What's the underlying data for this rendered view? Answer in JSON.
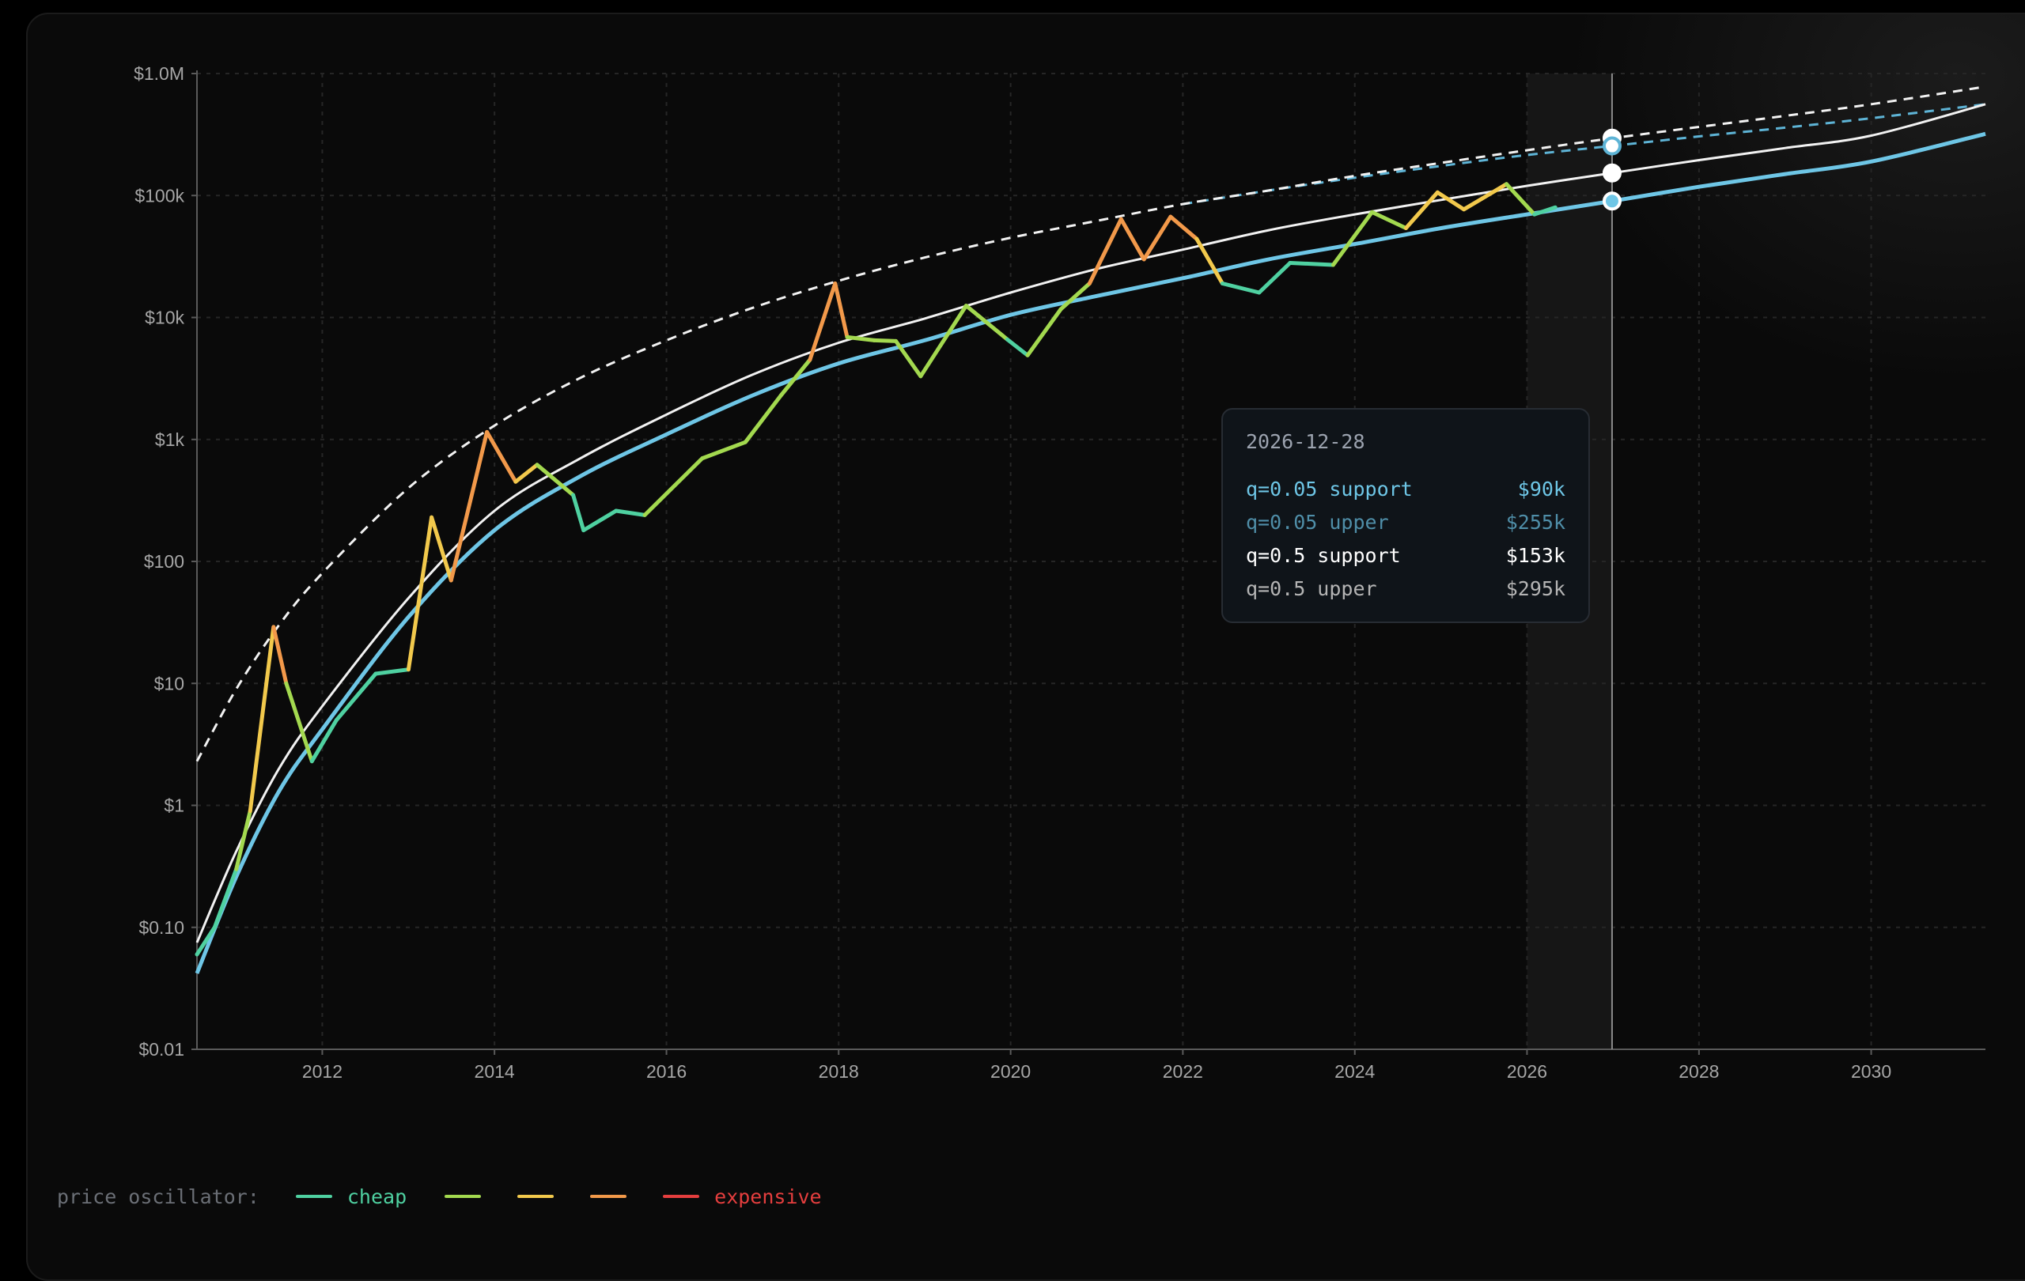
{
  "chart_data": {
    "type": "line",
    "y_scale": "log",
    "ylim": [
      0.01,
      1000000
    ],
    "xlim": [
      "2010-07-18",
      "2031-05-01"
    ],
    "grid": true,
    "x_ticks": [
      "2012",
      "2014",
      "2016",
      "2018",
      "2020",
      "2022",
      "2024",
      "2026",
      "2028",
      "2030"
    ],
    "y_ticks": [
      {
        "value": 1000000,
        "label": "$1.0M"
      },
      {
        "value": 100000,
        "label": "$100k"
      },
      {
        "value": 10000,
        "label": "$10k"
      },
      {
        "value": 1000,
        "label": "$1k"
      },
      {
        "value": 100,
        "label": "$100"
      },
      {
        "value": 10,
        "label": "$10"
      },
      {
        "value": 1,
        "label": "$1"
      },
      {
        "value": 0.1,
        "label": "$0.10"
      },
      {
        "value": 0.01,
        "label": "$0.01"
      }
    ],
    "series": [
      {
        "name": "q=0.05 support",
        "color": "#6ec6e6",
        "style": "solid",
        "x": [
          "2010-07-18",
          "2011-01-01",
          "2011-07-01",
          "2012-01-01",
          "2013-01-01",
          "2014-01-01",
          "2015-01-01",
          "2016-01-01",
          "2017-01-01",
          "2018-01-01",
          "2019-01-01",
          "2020-01-01",
          "2021-01-01",
          "2022-01-01",
          "2023-01-01",
          "2024-01-01",
          "2025-01-01",
          "2026-01-01",
          "2026-12-28",
          "2028-01-01",
          "2029-01-01",
          "2030-01-01",
          "2031-05-01"
        ],
        "y": [
          0.042,
          0.26,
          1.3,
          4.2,
          35,
          180,
          500,
          1100,
          2300,
          4200,
          6500,
          10500,
          15000,
          21000,
          30000,
          40000,
          54000,
          70000,
          90000,
          118000,
          150000,
          190000,
          320000
        ]
      },
      {
        "name": "q=0.05 upper",
        "color": "#6ec6e6",
        "style": "dashed",
        "x": [
          "2022-01-01",
          "2023-01-01",
          "2024-01-01",
          "2025-01-01",
          "2026-01-01",
          "2026-12-28",
          "2028-01-01",
          "2029-01-01",
          "2030-01-01",
          "2031-05-01"
        ],
        "y": [
          85000,
          110000,
          140000,
          175000,
          215000,
          255000,
          305000,
          360000,
          430000,
          560000
        ]
      },
      {
        "name": "q=0.5 support",
        "color": "#f2f2f2",
        "style": "solid",
        "x": [
          "2010-07-18",
          "2011-01-01",
          "2011-07-01",
          "2012-01-01",
          "2013-01-01",
          "2014-01-01",
          "2015-01-01",
          "2016-01-01",
          "2017-01-01",
          "2018-01-01",
          "2019-01-01",
          "2020-01-01",
          "2021-01-01",
          "2022-01-01",
          "2023-01-01",
          "2024-01-01",
          "2025-01-01",
          "2026-01-01",
          "2026-12-28",
          "2028-01-01",
          "2029-01-01",
          "2030-01-01",
          "2031-05-01"
        ],
        "y": [
          0.075,
          0.42,
          2.0,
          6.5,
          50,
          260,
          700,
          1600,
          3400,
          6200,
          9800,
          16000,
          25000,
          36000,
          52000,
          70000,
          92000,
          120000,
          153000,
          195000,
          245000,
          310000,
          560000
        ]
      },
      {
        "name": "q=0.5 upper",
        "color": "#f2f2f2",
        "style": "dashed",
        "x": [
          "2010-07-18",
          "2011-01-01",
          "2011-07-01",
          "2012-01-01",
          "2013-01-01",
          "2014-01-01",
          "2015-01-01",
          "2016-01-01",
          "2017-01-01",
          "2018-01-01",
          "2019-01-01",
          "2020-01-01",
          "2021-01-01",
          "2022-01-01",
          "2023-01-01",
          "2024-01-01",
          "2025-01-01",
          "2026-01-01",
          "2026-12-28",
          "2028-01-01",
          "2029-01-01",
          "2030-01-01",
          "2031-05-01"
        ],
        "y": [
          2.3,
          9,
          30,
          80,
          400,
          1300,
          3200,
          6500,
          12000,
          20000,
          31000,
          45000,
          62000,
          85000,
          110000,
          145000,
          185000,
          235000,
          295000,
          365000,
          450000,
          560000,
          780000
        ]
      },
      {
        "name": "price",
        "style": "oscillator",
        "x": [
          "2010-07-18",
          "2010-10-01",
          "2011-01-01",
          "2011-03-01",
          "2011-06-08",
          "2011-08-01",
          "2011-11-18",
          "2012-03-01",
          "2012-08-15",
          "2013-01-01",
          "2013-04-09",
          "2013-07-01",
          "2013-11-30",
          "2014-04-01",
          "2014-07-01",
          "2014-12-01",
          "2015-01-14",
          "2015-06-01",
          "2015-10-01",
          "2016-06-01",
          "2016-12-01",
          "2017-05-01",
          "2017-09-01",
          "2017-12-17",
          "2018-02-06",
          "2018-06-01",
          "2018-09-01",
          "2018-12-15",
          "2019-06-26",
          "2019-12-18",
          "2020-03-13",
          "2020-08-01",
          "2020-12-01",
          "2021-04-14",
          "2021-07-20",
          "2021-11-10",
          "2022-03-01",
          "2022-06-18",
          "2022-11-21",
          "2023-04-01",
          "2023-10-01",
          "2024-03-14",
          "2024-08-05",
          "2024-12-17",
          "2025-04-08",
          "2025-10-06",
          "2026-02-01",
          "2026-05-01"
        ],
        "y": [
          0.06,
          0.1,
          0.3,
          0.9,
          29,
          10,
          2.3,
          5,
          12,
          13,
          230,
          70,
          1150,
          450,
          620,
          350,
          180,
          260,
          240,
          700,
          950,
          2300,
          4500,
          19000,
          6900,
          6500,
          6400,
          3300,
          12500,
          6600,
          4900,
          11700,
          19000,
          64000,
          30000,
          67000,
          44000,
          19000,
          16000,
          28000,
          27000,
          73000,
          54000,
          106000,
          77000,
          124000,
          70000,
          80000
        ],
        "oscillator": [
          0.1,
          0.1,
          0.1,
          0.2,
          1,
          0.4,
          0,
          0.1,
          0.1,
          0.1,
          0.8,
          0.3,
          1,
          0.5,
          0.4,
          0.2,
          0,
          0.1,
          0.1,
          0.15,
          0.2,
          0.3,
          0.4,
          1,
          0.4,
          0.3,
          0.25,
          0,
          0.5,
          0.2,
          0,
          0.3,
          0.4,
          0.95,
          0.6,
          1,
          0.65,
          0.2,
          0,
          0.1,
          0.05,
          0.35,
          0.2,
          0.55,
          0.3,
          0.5,
          0.1,
          0.1
        ]
      }
    ],
    "highlight": {
      "from": "2026-01-01",
      "to": "2026-12-28"
    },
    "crosshair": "2026-12-28",
    "oscillator_scale": [
      "#4fd1a1",
      "#a3d94f",
      "#f2c94c",
      "#f2994a",
      "#e53e3e"
    ]
  },
  "tooltip": {
    "date": "2026-12-28",
    "rows": [
      {
        "label": "q=0.05 support",
        "value": "$90k",
        "color": "#6ec6e6"
      },
      {
        "label": "q=0.05 upper",
        "value": "$255k",
        "color": "#4f8ea8"
      },
      {
        "label": "q=0.5 support",
        "value": "$153k",
        "color": "#ffffff"
      },
      {
        "label": "q=0.5 upper",
        "value": "$295k",
        "color": "#b4b4b4"
      }
    ]
  },
  "legend": {
    "label": "price oscillator:",
    "items": [
      {
        "text": "cheap",
        "color": "#4fd1a1"
      },
      {
        "text": "",
        "color": "#a3d94f"
      },
      {
        "text": "",
        "color": "#f2c94c"
      },
      {
        "text": "",
        "color": "#f2994a"
      },
      {
        "text": "expensive",
        "color": "#e53e3e"
      }
    ]
  }
}
